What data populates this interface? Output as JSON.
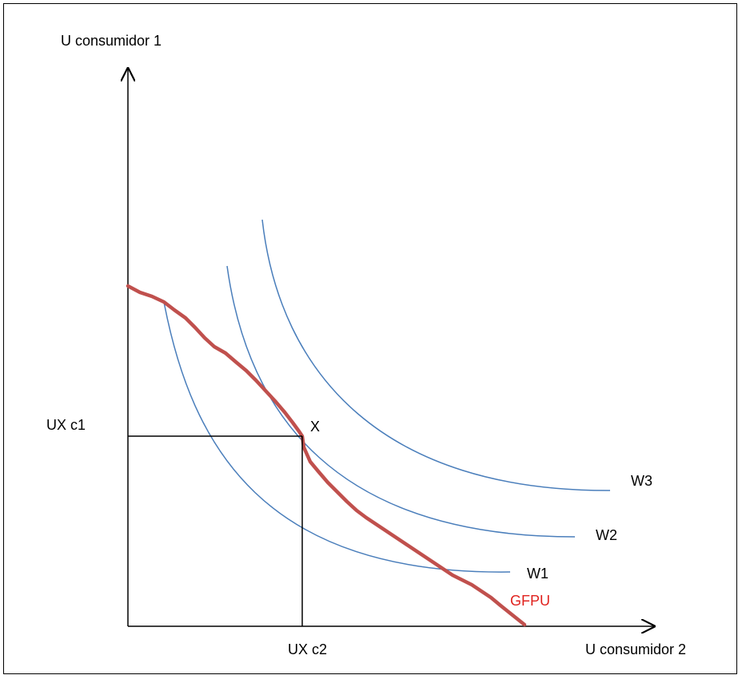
{
  "axes": {
    "y_label": "U consumidor 1",
    "x_label": "U consumidor 2"
  },
  "point": {
    "label": "X",
    "y_value_label": "UX c1",
    "x_value_label": "UX c2"
  },
  "curves": {
    "w1": "W1",
    "w2": "W2",
    "w3": "W3",
    "frontier": "GFPU"
  },
  "colors": {
    "axis": "#000000",
    "indifference_curve": "#4a7ebb",
    "frontier": "#c0504d",
    "frontier_label": "#e0231f"
  }
}
